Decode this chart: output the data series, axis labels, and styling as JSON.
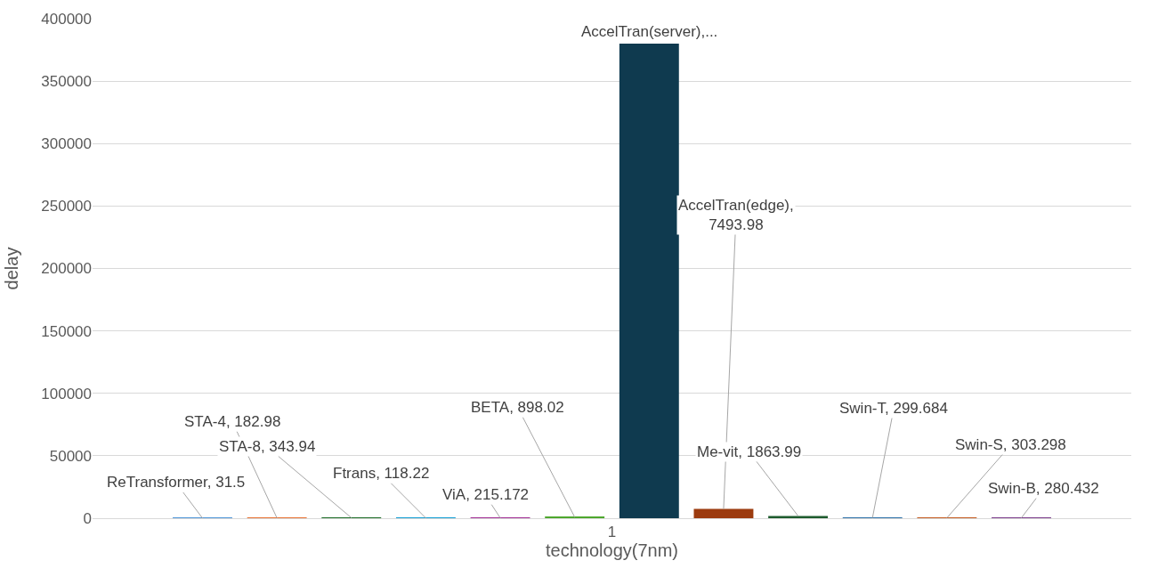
{
  "chart_data": {
    "type": "bar",
    "xlabel": "technology(7nm)",
    "ylabel": "delay",
    "categories": [
      "1"
    ],
    "ylim": [
      0,
      400000
    ],
    "yticks": [
      0,
      50000,
      100000,
      150000,
      200000,
      250000,
      300000,
      350000,
      400000
    ],
    "grid": "y",
    "series": [
      {
        "color": "#4e95d9",
        "values": [
          31.5
        ],
        "value_labels": [
          "ReTransformer, 31.5"
        ]
      },
      {
        "color": "#e97132",
        "values": [
          182.98
        ],
        "value_labels": [
          "STA-4, 182.98"
        ]
      },
      {
        "color": "#196b24",
        "values": [
          343.94
        ],
        "value_labels": [
          "STA-8, 343.94"
        ]
      },
      {
        "color": "#0f9ed5",
        "values": [
          118.22
        ],
        "value_labels": [
          "Ftrans, 118.22"
        ]
      },
      {
        "color": "#a02b93",
        "values": [
          215.172
        ],
        "value_labels": [
          "ViA, 215.172"
        ]
      },
      {
        "color": "#4ea72e",
        "values": [
          898.02
        ],
        "value_labels": [
          "BETA, 898.02"
        ]
      },
      {
        "color": "#0f3a4f",
        "values": [
          380000
        ],
        "value_labels": [
          "AccelTran(server),..."
        ]
      },
      {
        "color": "#9c3b0f",
        "values": [
          7493.98
        ],
        "value_labels": [
          "AccelTran(edge), 7493.98"
        ]
      },
      {
        "color": "#1e5c2e",
        "values": [
          1863.99
        ],
        "value_labels": [
          "Me-vit, 1863.99"
        ]
      },
      {
        "color": "#2a6fa8",
        "values": [
          299.684
        ],
        "value_labels": [
          "Swin-T, 299.684"
        ]
      },
      {
        "color": "#c55a1e",
        "values": [
          303.298
        ],
        "value_labels": [
          "Swin-S, 303.298"
        ]
      },
      {
        "color": "#7a3a8a",
        "values": [
          280.432
        ],
        "value_labels": [
          "Swin-B, 280.432"
        ]
      }
    ]
  }
}
